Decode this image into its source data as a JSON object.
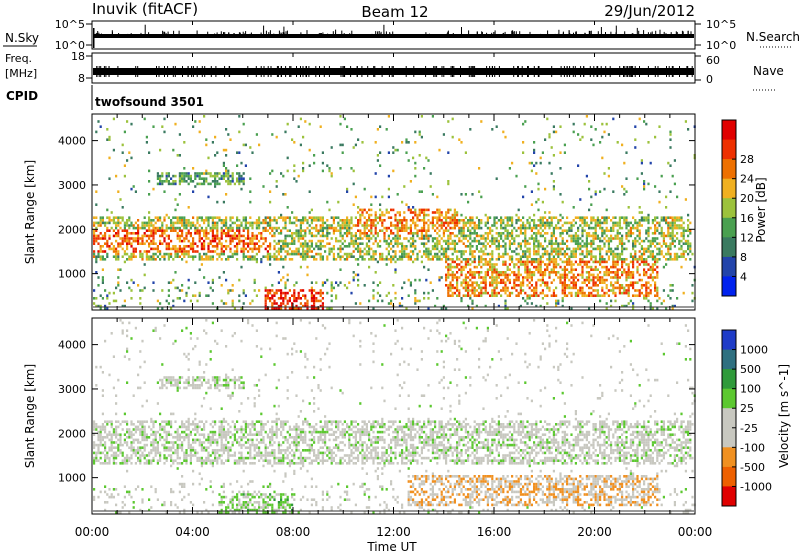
{
  "header": {
    "station": "Inuvik (fitACF)",
    "beam": "Beam 12",
    "date": "29/Jun/2012"
  },
  "nsky_panel": {
    "left_label": "N.Sky",
    "left_ticks": [
      "10^5",
      "10^0"
    ],
    "right_ticks": [
      "10^5",
      "10^0"
    ],
    "right_label": "N.Search"
  },
  "freq_panel": {
    "left_label_1": "Freq.",
    "left_label_2": "[MHz]",
    "left_ticks": [
      "18",
      "8"
    ],
    "right_ticks": [
      "60",
      "0"
    ],
    "right_label": "Nave"
  },
  "cpid_panel": {
    "label": "CPID",
    "mode": "twofsound 3501"
  },
  "x_axis": {
    "tick_labels": [
      "00:00",
      "04:00",
      "08:00",
      "12:00",
      "16:00",
      "20:00",
      "00:00"
    ],
    "title": "Time UT"
  },
  "power_panel": {
    "ylabel": "Slant Range [km]",
    "ytick_labels": [
      "1000",
      "2000",
      "3000",
      "4000"
    ],
    "colorbar_title": "Power [dB]",
    "colorbar_labels": [
      "4",
      "8",
      "12",
      "16",
      "20",
      "24",
      "28"
    ],
    "colors": [
      "#0022ee",
      "#2244aa",
      "#3a7a60",
      "#4aa050",
      "#9cc23c",
      "#f0b020",
      "#ee7000",
      "#ee3000",
      "#e00000"
    ]
  },
  "velocity_panel": {
    "ylabel": "Slant Range [km]",
    "ytick_labels": [
      "1000",
      "2000",
      "3000",
      "4000"
    ],
    "colorbar_title": "Velocity [m s^-1]",
    "colorbar_labels": [
      "1000",
      "500",
      "100",
      "25",
      "-25",
      "-100",
      "-500",
      "-1000"
    ],
    "colors": [
      "#1f3cc8",
      "#2f7080",
      "#2f9a3a",
      "#5cc830",
      "#c8c8c0",
      "#c8c8c0",
      "#f09020",
      "#ee6000",
      "#e00000"
    ]
  },
  "chart_data": [
    {
      "type": "line",
      "title": "N.Sky / N.Search",
      "x": [
        0,
        24
      ],
      "xlim": [
        0,
        24
      ],
      "ylim": [
        "10^0",
        "10^5"
      ],
      "series": []
    },
    {
      "type": "line",
      "title": "Freq. / Nave",
      "xlim": [
        0,
        24
      ],
      "ylim": [
        8,
        18
      ],
      "series": []
    },
    {
      "type": "heatmap",
      "quantity": "Power [dB]",
      "xlabel": "Time UT",
      "ylabel": "Slant Range [km]",
      "xlim": [
        "00:00",
        "24:00"
      ],
      "ylim": [
        180,
        4600
      ],
      "clim": [
        0,
        30
      ],
      "colorbar_ticks": [
        4,
        8,
        12,
        16,
        20,
        24,
        28
      ],
      "features": [
        {
          "x_hours": [
            0,
            23.8
          ],
          "range_km": [
            1300,
            2300
          ],
          "level_db": 16
        },
        {
          "x_hours": [
            0,
            7.2
          ],
          "range_km": [
            1500,
            2000
          ],
          "level_db": 24
        },
        {
          "x_hours": [
            6.8,
            9.2
          ],
          "range_km": [
            200,
            700
          ],
          "level_db": 28
        },
        {
          "x_hours": [
            10.5,
            14.5
          ],
          "range_km": [
            1900,
            2500
          ],
          "level_db": 22
        },
        {
          "x_hours": [
            14,
            22.5
          ],
          "range_km": [
            500,
            1300
          ],
          "level_db": 22
        },
        {
          "x_hours": [
            2.5,
            6
          ],
          "range_km": [
            3000,
            3300
          ],
          "level_db": 12
        }
      ]
    },
    {
      "type": "heatmap",
      "quantity": "Velocity [m s^-1]",
      "xlabel": "Time UT",
      "ylabel": "Slant Range [km]",
      "xlim": [
        "00:00",
        "24:00"
      ],
      "ylim": [
        180,
        4600
      ],
      "clim": [
        -1000,
        1000
      ],
      "colorbar_ticks": [
        1000,
        500,
        100,
        25,
        -25,
        -100,
        -500,
        -1000
      ],
      "features": [
        {
          "x_hours": [
            0,
            23.8
          ],
          "range_km": [
            1300,
            2300
          ],
          "level_ms": 0
        },
        {
          "x_hours": [
            2.5,
            6
          ],
          "range_km": [
            3000,
            3300
          ],
          "level_ms": 0
        },
        {
          "x_hours": [
            5,
            8
          ],
          "range_km": [
            200,
            700
          ],
          "level_ms": 150
        },
        {
          "x_hours": [
            12.5,
            22.5
          ],
          "range_km": [
            400,
            1100
          ],
          "level_ms": -300
        }
      ]
    }
  ]
}
